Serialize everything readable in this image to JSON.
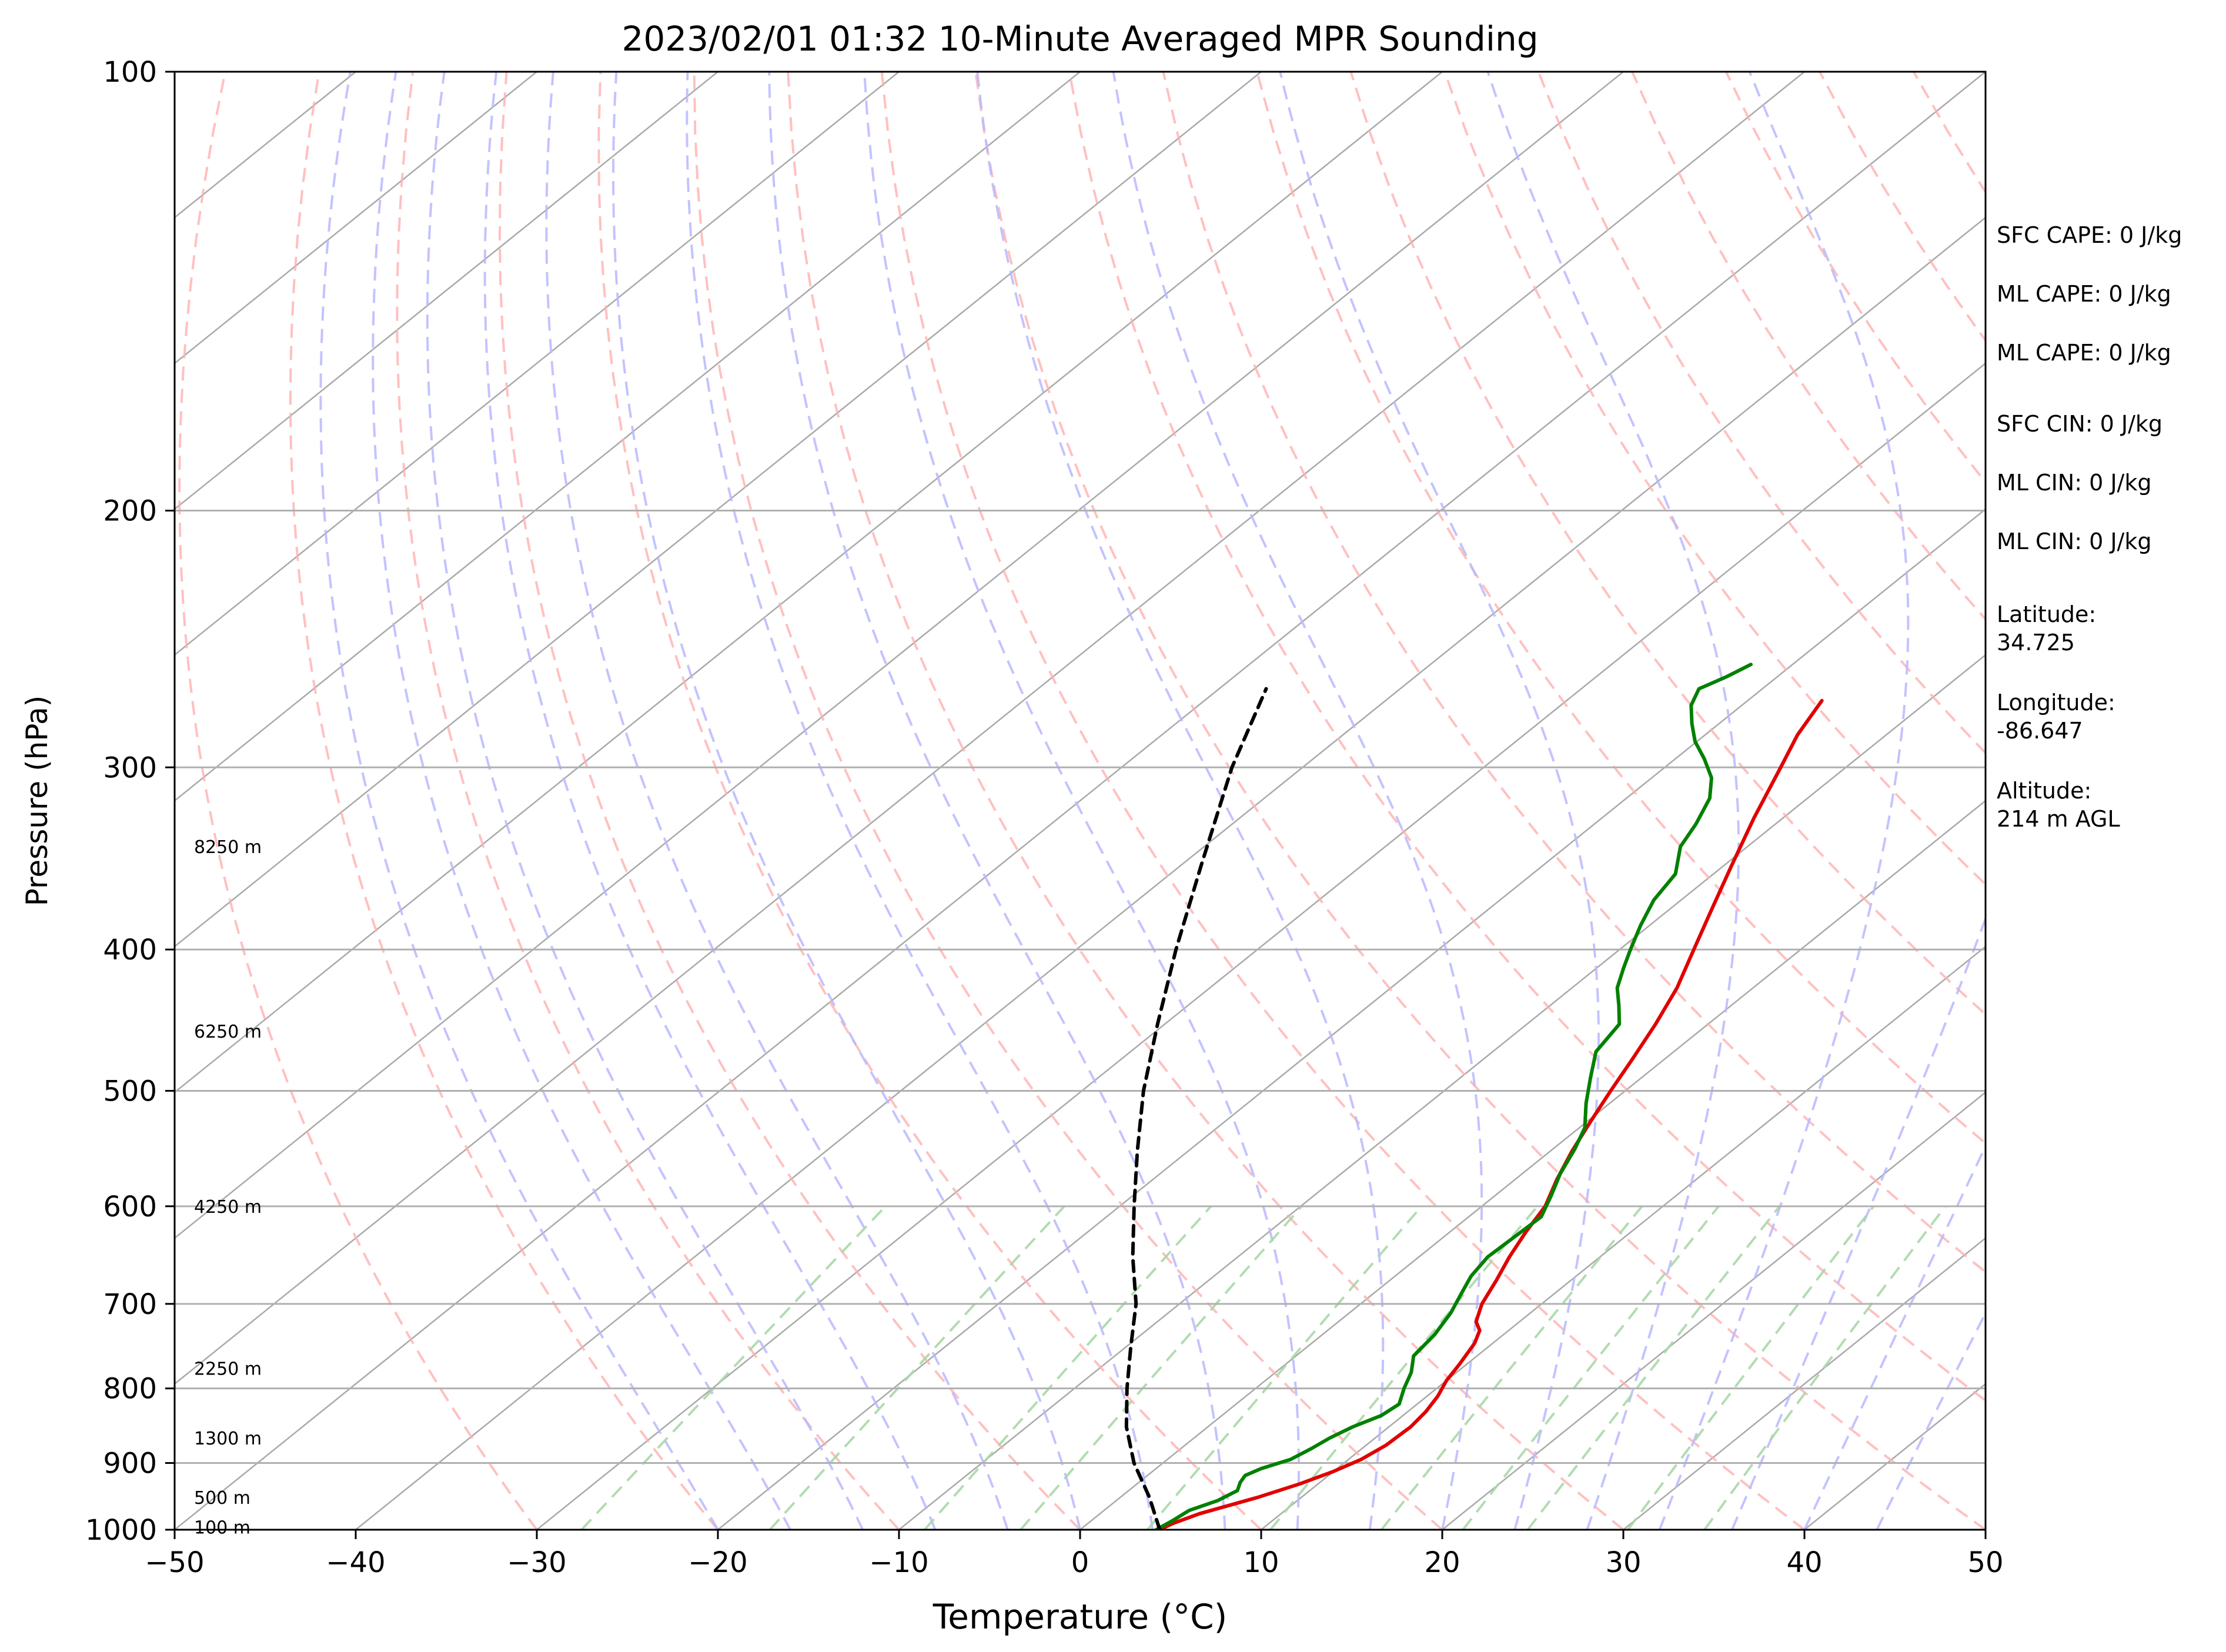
{
  "chart_data": {
    "type": "line",
    "title": "2023/02/01 01:32 10-Minute Averaged MPR Sounding",
    "xlabel": "Temperature (°C)",
    "ylabel": "Pressure (hPa)",
    "xlim": [
      -50,
      50
    ],
    "ylim": [
      1000,
      100
    ],
    "y_scale": "log",
    "grid": true,
    "x_ticks": [
      "−50",
      "−40",
      "−30",
      "−20",
      "−10",
      "0",
      "10",
      "20",
      "30",
      "40",
      "50"
    ],
    "y_ticks": [
      "100",
      "200",
      "300",
      "400",
      "500",
      "600",
      "700",
      "800",
      "900",
      "1000"
    ],
    "height_labels": [
      {
        "p": 996,
        "label": "100 m"
      },
      {
        "p": 950,
        "label": "500 m"
      },
      {
        "p": 865,
        "label": "1300 m"
      },
      {
        "p": 775,
        "label": "2250 m"
      },
      {
        "p": 600,
        "label": "4250 m"
      },
      {
        "p": 455,
        "label": "6250 m"
      },
      {
        "p": 340,
        "label": "8250 m"
      }
    ],
    "series": [
      {
        "key": "temperature",
        "color": "#e00000",
        "points": [
          [
            1000,
            4.4
          ],
          [
            990,
            4.7
          ],
          [
            975,
            5.5
          ],
          [
            950,
            7.6
          ],
          [
            930,
            9.0
          ],
          [
            912,
            10.0
          ],
          [
            895,
            10.7
          ],
          [
            875,
            11.1
          ],
          [
            850,
            11.2
          ],
          [
            830,
            11.0
          ],
          [
            810,
            10.6
          ],
          [
            790,
            10.0
          ],
          [
            770,
            9.6
          ],
          [
            745,
            9.0
          ],
          [
            730,
            8.4
          ],
          [
            720,
            7.6
          ],
          [
            700,
            6.7
          ],
          [
            675,
            5.9
          ],
          [
            650,
            5.0
          ],
          [
            625,
            4.2
          ],
          [
            600,
            3.5
          ],
          [
            575,
            2.3
          ],
          [
            550,
            1.2
          ],
          [
            525,
            0.2
          ],
          [
            500,
            -0.8
          ],
          [
            475,
            -1.8
          ],
          [
            450,
            -2.9
          ],
          [
            425,
            -4.2
          ],
          [
            400,
            -5.9
          ],
          [
            375,
            -7.7
          ],
          [
            350,
            -9.6
          ],
          [
            325,
            -11.6
          ],
          [
            300,
            -13.6
          ],
          [
            285,
            -14.9
          ],
          [
            270,
            -15.9
          ]
        ]
      },
      {
        "key": "dewpoint",
        "color": "#008000",
        "points": [
          [
            1000,
            4.2
          ],
          [
            985,
            4.5
          ],
          [
            970,
            4.7
          ],
          [
            955,
            5.6
          ],
          [
            940,
            6.0
          ],
          [
            928,
            5.6
          ],
          [
            918,
            5.4
          ],
          [
            908,
            5.8
          ],
          [
            895,
            6.8
          ],
          [
            880,
            7.2
          ],
          [
            865,
            7.5
          ],
          [
            850,
            8.0
          ],
          [
            835,
            8.8
          ],
          [
            820,
            9.0
          ],
          [
            800,
            8.2
          ],
          [
            780,
            7.5
          ],
          [
            760,
            6.5
          ],
          [
            735,
            6.2
          ],
          [
            710,
            5.6
          ],
          [
            690,
            4.9
          ],
          [
            670,
            4.2
          ],
          [
            650,
            3.8
          ],
          [
            630,
            3.9
          ],
          [
            610,
            4.0
          ],
          [
            590,
            3.1
          ],
          [
            570,
            2.1
          ],
          [
            548,
            1.2
          ],
          [
            530,
            0.3
          ],
          [
            510,
            -1.3
          ],
          [
            490,
            -2.8
          ],
          [
            470,
            -4.3
          ],
          [
            450,
            -4.9
          ],
          [
            437,
            -6.2
          ],
          [
            425,
            -7.5
          ],
          [
            412,
            -8.5
          ],
          [
            400,
            -9.4
          ],
          [
            385,
            -10.5
          ],
          [
            370,
            -11.5
          ],
          [
            355,
            -12.1
          ],
          [
            340,
            -13.7
          ],
          [
            328,
            -14.4
          ],
          [
            315,
            -15.4
          ],
          [
            305,
            -16.7
          ],
          [
            296,
            -18.4
          ],
          [
            288,
            -20.1
          ],
          [
            280,
            -21.5
          ],
          [
            272,
            -22.8
          ],
          [
            265,
            -23.5
          ],
          [
            260,
            -22.8
          ],
          [
            255,
            -22.3
          ]
        ]
      },
      {
        "key": "parcel",
        "color": "#000000",
        "dashed": true,
        "points": [
          [
            1000,
            4.4
          ],
          [
            950,
            1.6
          ],
          [
            900,
            -1.6
          ],
          [
            850,
            -4.5
          ],
          [
            800,
            -7.1
          ],
          [
            750,
            -9.7
          ],
          [
            700,
            -12.4
          ],
          [
            650,
            -15.8
          ],
          [
            600,
            -19.2
          ],
          [
            550,
            -22.8
          ],
          [
            500,
            -26.6
          ],
          [
            450,
            -30.4
          ],
          [
            400,
            -34.5
          ],
          [
            350,
            -38.9
          ],
          [
            300,
            -43.9
          ],
          [
            265,
            -47.4
          ]
        ]
      }
    ],
    "background_lines": {
      "isotherms_color": "#a9a9a9",
      "dry_adiabats_color": "#ffb0b0",
      "moist_adiabats_color": "#b8b8ff",
      "mixing_ratio_color": "#a9d8a9"
    }
  },
  "stats": {
    "sfc_cape": "SFC CAPE: 0 J/kg",
    "ml_cape_1": "ML CAPE: 0 J/kg",
    "ml_cape_2": "ML CAPE: 0 J/kg",
    "sfc_cin": "SFC CIN: 0 J/kg",
    "ml_cin_1": "ML CIN: 0 J/kg",
    "ml_cin_2": "ML CIN: 0 J/kg",
    "latitude_label": "Latitude:",
    "latitude_value": "34.725",
    "longitude_label": "Longitude:",
    "longitude_value": "-86.647",
    "altitude_label": "Altitude:",
    "altitude_value": "214 m AGL"
  }
}
